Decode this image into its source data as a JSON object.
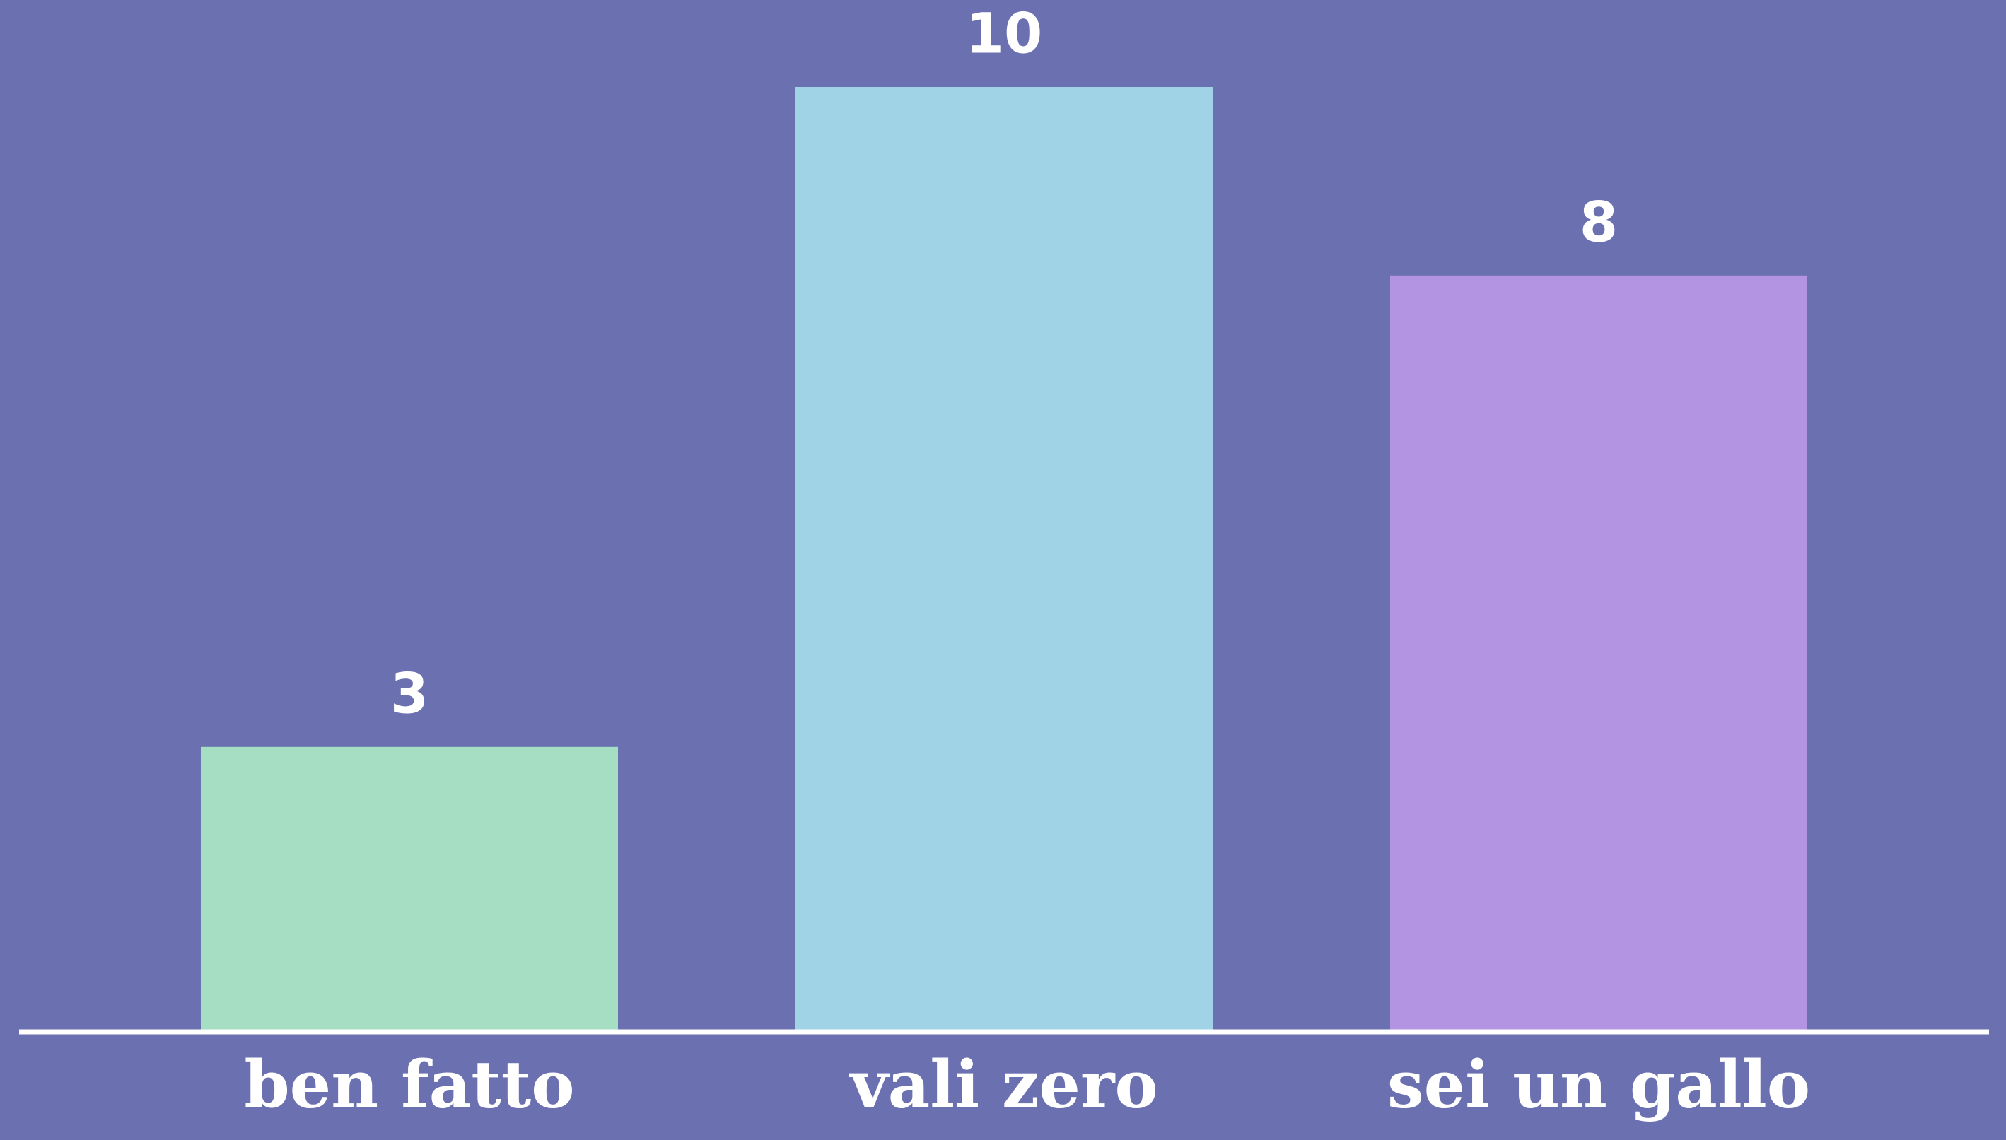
{
  "chart_data": {
    "type": "bar",
    "categories": [
      "ben fatto",
      "vali zero",
      "sei un gallo"
    ],
    "values": [
      3,
      10,
      8
    ],
    "colors": [
      "#a6dec4",
      "#a0d3e6",
      "#b394e2"
    ],
    "ylim": [
      0,
      10
    ]
  }
}
